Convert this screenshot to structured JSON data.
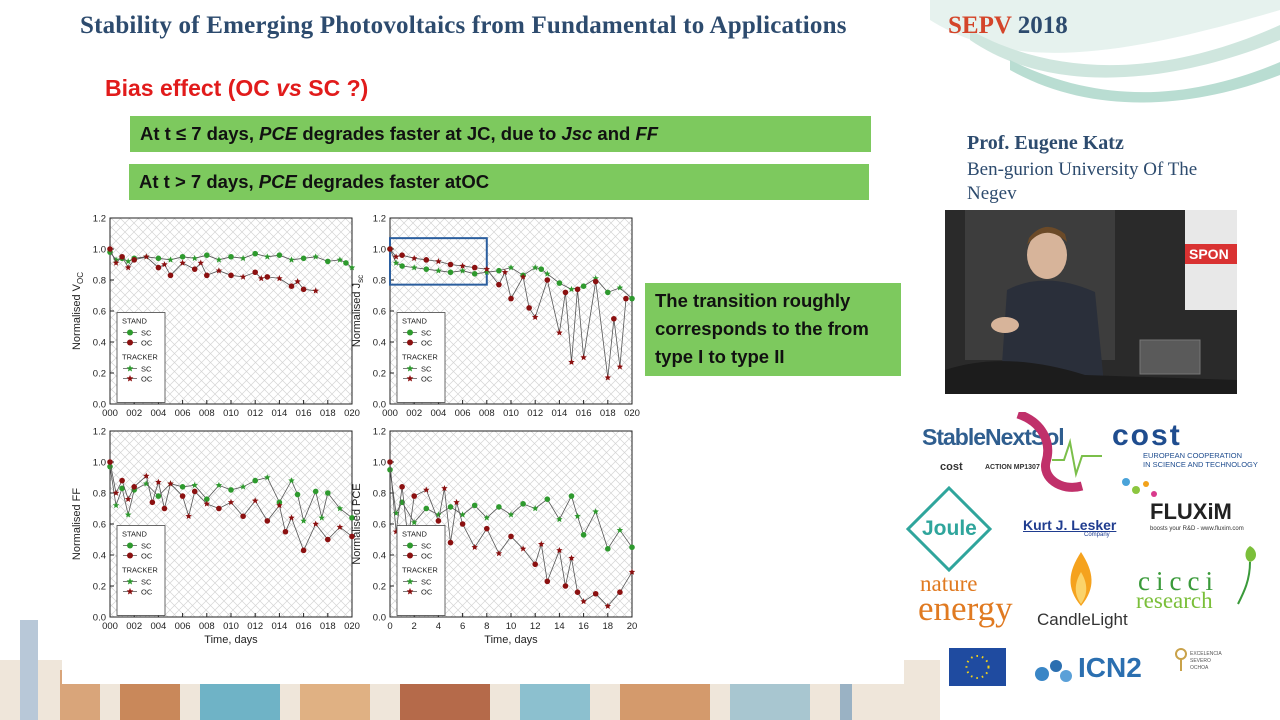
{
  "header": {
    "title": "Stability of Emerging Photovoltaics from Fundamental to Applications",
    "event_name": "SEPV",
    "event_year": "2018"
  },
  "slide": {
    "heading_prefix": "Bias effect (OC ",
    "heading_vs": "vs",
    "heading_suffix": " SC ?)",
    "box1": {
      "t1": "At t ≤ 7 days, ",
      "i1": "PCE",
      "t2": " degrades faster at JC, due to ",
      "i2": "Jsc",
      "t3": " and ",
      "i3": "FF"
    },
    "box2": {
      "t1": "At t > 7 days, ",
      "i1": "PCE",
      "t2": " degrades faster atOC"
    },
    "note": "The transition roughly corresponds to the from type I to type II"
  },
  "chart_data": [
    {
      "type": "scatter",
      "ylabel": "Normalised V",
      "ylabel_sub": "OC",
      "xlabel": "",
      "x_ticks": [
        "000",
        "002",
        "004",
        "006",
        "008",
        "010",
        "012",
        "014",
        "016",
        "018",
        "020"
      ],
      "y_ticks": [
        "0.0",
        "0.2",
        "0.4",
        "0.6",
        "0.8",
        "1.0",
        "1.2"
      ],
      "xlim": [
        0,
        20
      ],
      "ylim": [
        0,
        1.2
      ],
      "legend": {
        "group1": "STAND",
        "group2": "TRACKER",
        "sc": "SC",
        "oc": "OC"
      },
      "series": [
        {
          "name": "SC",
          "color": "#2e9a2e",
          "x": [
            0,
            0.5,
            1,
            1.5,
            2,
            3,
            4,
            5,
            6,
            7,
            8,
            9,
            10,
            11,
            12,
            13,
            14,
            15,
            16,
            17,
            18,
            19,
            19.5,
            20
          ],
          "y": [
            0.98,
            0.93,
            0.94,
            0.92,
            0.94,
            0.95,
            0.94,
            0.93,
            0.95,
            0.94,
            0.96,
            0.93,
            0.95,
            0.94,
            0.97,
            0.95,
            0.96,
            0.93,
            0.94,
            0.95,
            0.92,
            0.93,
            0.91,
            0.88
          ]
        },
        {
          "name": "OC",
          "color": "#8b1010",
          "x": [
            0,
            0.5,
            1,
            1.5,
            2,
            3,
            4,
            4.5,
            5,
            6,
            7,
            7.5,
            8,
            9,
            10,
            11,
            12,
            12.5,
            13,
            14,
            15,
            15.5,
            16,
            17
          ],
          "y": [
            1.0,
            0.91,
            0.95,
            0.88,
            0.93,
            0.95,
            0.88,
            0.9,
            0.83,
            0.91,
            0.87,
            0.91,
            0.83,
            0.86,
            0.83,
            0.82,
            0.85,
            0.81,
            0.82,
            0.81,
            0.76,
            0.79,
            0.74,
            0.73
          ]
        }
      ]
    },
    {
      "type": "scatter",
      "ylabel": "Normalised J",
      "ylabel_sub": "sc",
      "xlabel": "",
      "x_ticks": [
        "000",
        "002",
        "004",
        "006",
        "008",
        "010",
        "012",
        "014",
        "016",
        "018",
        "020"
      ],
      "y_ticks": [
        "0.0",
        "0.2",
        "0.4",
        "0.6",
        "0.8",
        "1.0",
        "1.2"
      ],
      "xlim": [
        0,
        20
      ],
      "ylim": [
        0,
        1.2
      ],
      "legend": {
        "group1": "STAND",
        "group2": "TRACKER",
        "sc": "SC",
        "oc": "OC"
      },
      "highlight": {
        "x0": 0,
        "x1": 8,
        "y0": 0.77,
        "y1": 1.07
      },
      "series": [
        {
          "name": "SC",
          "color": "#2e9a2e",
          "x": [
            0,
            0.5,
            1,
            2,
            3,
            4,
            5,
            6,
            7,
            8,
            9,
            10,
            11,
            12,
            12.5,
            13,
            14,
            15,
            16,
            17,
            18,
            19,
            20
          ],
          "y": [
            1.0,
            0.91,
            0.89,
            0.88,
            0.87,
            0.86,
            0.85,
            0.86,
            0.84,
            0.85,
            0.86,
            0.88,
            0.83,
            0.88,
            0.87,
            0.84,
            0.78,
            0.74,
            0.76,
            0.81,
            0.72,
            0.75,
            0.68
          ]
        },
        {
          "name": "OC",
          "color": "#8b1010",
          "x": [
            0,
            0.5,
            1,
            2,
            3,
            4,
            5,
            6,
            7,
            8,
            9,
            9.5,
            10,
            11,
            11.5,
            12,
            13,
            14,
            14.5,
            15,
            15.5,
            16,
            17,
            18,
            18.5,
            19,
            19.5
          ],
          "y": [
            1.0,
            0.95,
            0.96,
            0.94,
            0.93,
            0.92,
            0.9,
            0.89,
            0.88,
            0.87,
            0.77,
            0.85,
            0.68,
            0.82,
            0.62,
            0.56,
            0.8,
            0.46,
            0.72,
            0.27,
            0.74,
            0.3,
            0.79,
            0.17,
            0.55,
            0.24,
            0.68
          ]
        }
      ]
    },
    {
      "type": "scatter",
      "ylabel": "Normalised FF",
      "ylabel_sub": "",
      "xlabel": "Time, days",
      "x_ticks": [
        "000",
        "002",
        "004",
        "006",
        "008",
        "010",
        "012",
        "014",
        "016",
        "018",
        "020"
      ],
      "y_ticks": [
        "0.0",
        "0.2",
        "0.4",
        "0.6",
        "0.8",
        "1.0",
        "1.2"
      ],
      "xlim": [
        0,
        20
      ],
      "ylim": [
        0,
        1.2
      ],
      "legend": {
        "group1": "STAND",
        "group2": "TRACKER",
        "sc": "SC",
        "oc": "OC"
      },
      "series": [
        {
          "name": "SC",
          "color": "#2e9a2e",
          "x": [
            0,
            0.5,
            1,
            1.5,
            2,
            3,
            4,
            5,
            6,
            7,
            8,
            9,
            10,
            11,
            12,
            13,
            14,
            15,
            15.5,
            16,
            17,
            17.5,
            18,
            19,
            20
          ],
          "y": [
            0.97,
            0.72,
            0.83,
            0.66,
            0.82,
            0.86,
            0.78,
            0.86,
            0.84,
            0.85,
            0.76,
            0.85,
            0.82,
            0.84,
            0.88,
            0.9,
            0.74,
            0.88,
            0.79,
            0.62,
            0.81,
            0.64,
            0.8,
            0.7,
            0.64
          ]
        },
        {
          "name": "OC",
          "color": "#8b1010",
          "x": [
            0,
            0.5,
            1,
            1.5,
            2,
            3,
            3.5,
            4,
            4.5,
            5,
            6,
            6.5,
            7,
            8,
            9,
            10,
            11,
            12,
            13,
            14,
            14.5,
            15,
            16,
            17,
            18,
            19,
            20
          ],
          "y": [
            1.0,
            0.8,
            0.88,
            0.76,
            0.84,
            0.91,
            0.74,
            0.87,
            0.7,
            0.86,
            0.78,
            0.65,
            0.81,
            0.73,
            0.7,
            0.74,
            0.65,
            0.75,
            0.62,
            0.72,
            0.55,
            0.64,
            0.43,
            0.6,
            0.5,
            0.58,
            0.52
          ]
        }
      ]
    },
    {
      "type": "scatter",
      "ylabel": "Normalised PCE",
      "ylabel_sub": "",
      "xlabel": "Time, days",
      "x_ticks": [
        "0",
        "2",
        "4",
        "6",
        "8",
        "10",
        "12",
        "14",
        "16",
        "18",
        "20"
      ],
      "y_ticks": [
        "0.0",
        "0.2",
        "0.4",
        "0.6",
        "0.8",
        "1.0",
        "1.2"
      ],
      "xlim": [
        0,
        20
      ],
      "ylim": [
        0,
        1.2
      ],
      "legend": {
        "group1": "STAND",
        "group2": "TRACKER",
        "sc": "SC",
        "oc": "OC"
      },
      "series": [
        {
          "name": "SC",
          "color": "#2e9a2e",
          "x": [
            0,
            0.5,
            1,
            2,
            3,
            4,
            5,
            6,
            7,
            8,
            9,
            10,
            11,
            12,
            13,
            14,
            15,
            15.5,
            16,
            17,
            18,
            19,
            20
          ],
          "y": [
            0.95,
            0.67,
            0.74,
            0.61,
            0.7,
            0.66,
            0.71,
            0.66,
            0.72,
            0.64,
            0.71,
            0.66,
            0.73,
            0.7,
            0.76,
            0.63,
            0.78,
            0.65,
            0.53,
            0.68,
            0.44,
            0.56,
            0.45
          ]
        },
        {
          "name": "OC",
          "color": "#8b1010",
          "x": [
            0,
            0.5,
            1,
            1.5,
            2,
            3,
            4,
            4.5,
            5,
            5.5,
            6,
            7,
            8,
            9,
            10,
            11,
            12,
            12.5,
            13,
            14,
            14.5,
            15,
            15.5,
            16,
            17,
            18,
            19,
            20
          ],
          "y": [
            1.0,
            0.55,
            0.84,
            0.5,
            0.78,
            0.82,
            0.62,
            0.83,
            0.48,
            0.74,
            0.6,
            0.45,
            0.57,
            0.41,
            0.52,
            0.44,
            0.34,
            0.47,
            0.23,
            0.43,
            0.2,
            0.38,
            0.16,
            0.1,
            0.15,
            0.07,
            0.16,
            0.29
          ]
        }
      ]
    }
  ],
  "speaker": {
    "name": "Prof. Eugene Katz",
    "affiliation_line1": "Ben-gurion University Of The",
    "affiliation_line2": "Negev"
  },
  "video": {
    "banner_text": "SPON"
  },
  "sponsors": {
    "stablenextsol": "StableNextSol",
    "action": "ACTION MP1307",
    "cost": "cost",
    "cost_tagline1": "EUROPEAN COOPERATION",
    "cost_tagline2": "IN SCIENCE AND TECHNOLOGY",
    "fluxim": "FLUXiM",
    "fluxim_tagline": "boosts your R&D - www.fluxim.com",
    "joule": "Joule",
    "lesker": "Kurt J. Lesker",
    "lesker_sub": "Company",
    "nature": "nature",
    "energy": "energy",
    "candlelight": "CandleLight",
    "cicci": "cicci",
    "research": "research",
    "icn2": "ICN2",
    "severo1": "EXCELENCIA",
    "severo2": "SEVERO",
    "severo3": "OCHOA"
  },
  "colors": {
    "title_blue": "#2d4b6e",
    "accent_red": "#d4452a",
    "heading_red": "#e11b1b",
    "box_green": "#7dc95e",
    "sc_green": "#2e9a2e",
    "oc_red": "#8b1010"
  }
}
